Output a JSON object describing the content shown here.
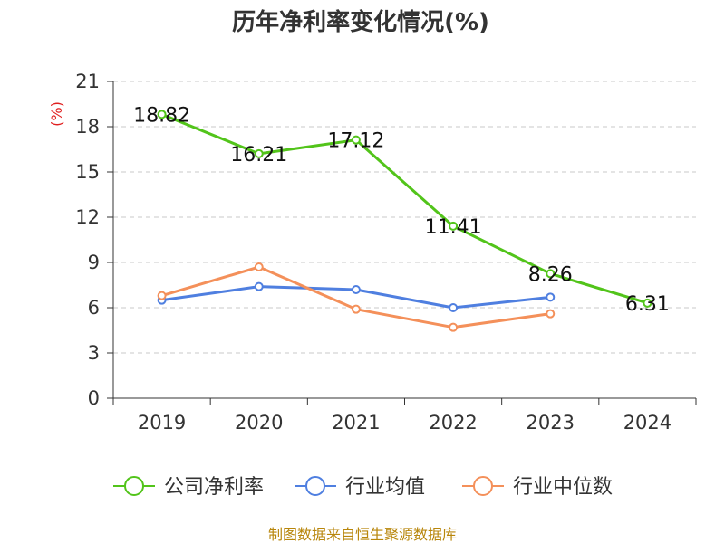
{
  "chart_data": {
    "type": "line",
    "title": "历年净利率变化情况(%)",
    "ylabel": "(%)",
    "xlabel": "",
    "categories": [
      "2019",
      "2020",
      "2021",
      "2022",
      "2023",
      "2024"
    ],
    "ylim": [
      0,
      21
    ],
    "yticks": [
      0,
      3,
      6,
      9,
      12,
      15,
      18,
      21
    ],
    "grid": true,
    "legend_position": "bottom",
    "series": [
      {
        "name": "公司净利率",
        "color": "#52c41a",
        "values": [
          18.82,
          16.21,
          17.12,
          11.41,
          8.26,
          6.31
        ],
        "labels": [
          "18.82",
          "16.21",
          "17.12",
          "11.41",
          "8.26",
          "6.31"
        ]
      },
      {
        "name": "行业均值",
        "color": "#4f7fe0",
        "values": [
          6.5,
          7.4,
          7.2,
          6.0,
          6.7,
          null
        ]
      },
      {
        "name": "行业中位数",
        "color": "#f4905a",
        "values": [
          6.8,
          8.7,
          5.9,
          4.7,
          5.6,
          null
        ]
      }
    ],
    "source": "制图数据来自恒生聚源数据库"
  }
}
